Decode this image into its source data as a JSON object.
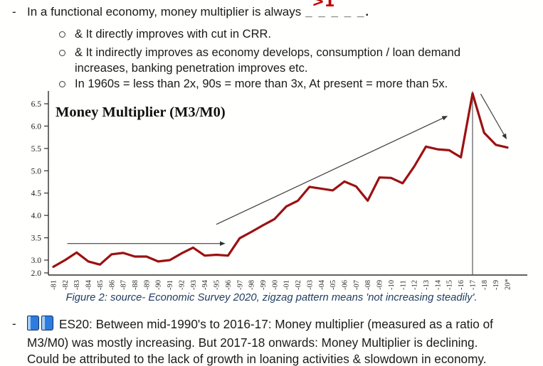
{
  "top_section": {
    "bullet_marker": "-",
    "line1_prefix": "In a functional economy, money multiplier is always",
    "line1_blank": "_ _ _ _ _.",
    "line1_annotation": ">1",
    "annotation_color": "#c00000",
    "sub_bullets": [
      {
        "text": "& It directly improves with cut in CRR."
      },
      {
        "text": "& It indirectly improves as economy develops, consumption / loan demand\nincreases, banking penetration improves etc."
      },
      {
        "text": "In 1960s = less than 2x, 90s = more than 3x, At present = more than 5x."
      }
    ]
  },
  "chart_data": {
    "type": "line",
    "title": "Money Multiplier (M3/M0)",
    "x": [
      "-81",
      "-82",
      "-83",
      "-84",
      "-85",
      "-86",
      "-87",
      "-88",
      "-89",
      "-90",
      "-91",
      "-92",
      "-93",
      "-94",
      "-95",
      "-96",
      "-97",
      "-98",
      "-99",
      "-00",
      "-01",
      "-02",
      "-03",
      "-04",
      "-05",
      "-06",
      "-07",
      "-08",
      "-09",
      "-10",
      "-11",
      "-12",
      "-13",
      "-14",
      "-15",
      "-16",
      "-17",
      "-18",
      "-19",
      "20*"
    ],
    "series": [
      {
        "name": "Money Multiplier (M3/M0)",
        "values": [
          2.85,
          3.0,
          3.17,
          2.97,
          2.9,
          3.13,
          3.16,
          3.08,
          3.08,
          2.97,
          3.0,
          3.15,
          3.28,
          3.1,
          3.12,
          3.1,
          3.49,
          3.63,
          3.78,
          3.92,
          4.2,
          4.33,
          4.64,
          4.6,
          4.56,
          4.76,
          4.65,
          4.33,
          4.85,
          4.84,
          4.72,
          5.1,
          5.54,
          5.48,
          5.46,
          5.3,
          6.73,
          5.85,
          5.58,
          5.52
        ]
      }
    ],
    "ylim": [
      2.0,
      6.8
    ],
    "yticks": [
      "6.5",
      "6.0",
      "5.5",
      "5.0",
      "4.5",
      "4.0",
      "3.5",
      "3.0",
      "2.0"
    ],
    "grid": "off",
    "legend": "none",
    "line_color": "#9b1111",
    "annotations": [
      {
        "type": "arrow",
        "name": "flat-trend-arrow",
        "from": {
          "x_index": 1.2,
          "y": 3.37
        },
        "to": {
          "x_index": 14.7,
          "y": 3.37
        }
      },
      {
        "type": "arrow",
        "name": "rising-trend-arrow",
        "from": {
          "x_index": 14.0,
          "y": 3.8
        },
        "to": {
          "x_index": 33.8,
          "y": 6.22
        }
      },
      {
        "type": "vline",
        "name": "peak-marker-line",
        "x_index": 36,
        "y1": 2.67,
        "y2": 6.78
      },
      {
        "type": "arrow",
        "name": "declining-trend-arrow",
        "from": {
          "x_index": 36.7,
          "y": 6.72
        },
        "to": {
          "x_index": 38.9,
          "y": 5.72
        }
      }
    ]
  },
  "figure_caption": "Figure 2: source- Economic Survey 2020, zigzag pattern means 'not increasing steadily'.",
  "bottom_section": {
    "bullet_marker": "-",
    "icons": [
      "blue-book-icon",
      "blue-book-icon"
    ],
    "lines": [
      "ES20: Between mid-1990's to 2016-17: Money multiplier (measured as a ratio of",
      "M3/M0) was mostly increasing. But 2017-18 onwards: Money Multiplier is declining.",
      "Could be attributed to the lack of growth in loaning activities & slowdown in economy."
    ]
  },
  "colors": {
    "line": "#9b1111",
    "annotation_red": "#c00000",
    "caption_navy": "#1f3a5f",
    "axis": "#2f2f2f",
    "trend_arrow": "#3f3f3f"
  }
}
